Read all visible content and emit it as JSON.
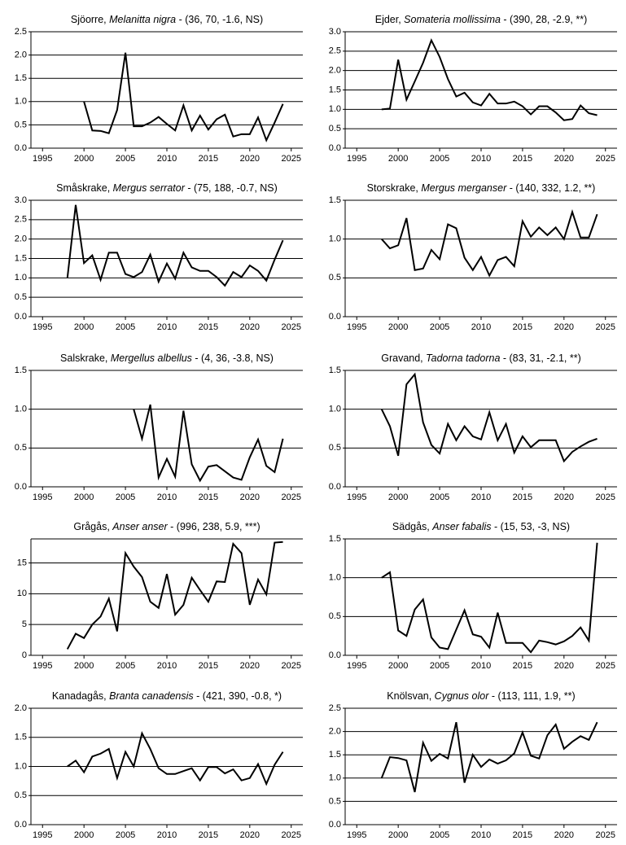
{
  "chart_data": [
    {
      "type": "line",
      "title": [
        "Sjöorre, ",
        "Melanitta nigra",
        " - (36, 70, -1.6, NS)"
      ],
      "color": "#000000",
      "x": [
        1998,
        1999,
        2000,
        2001,
        2002,
        2003,
        2004,
        2005,
        2006,
        2007,
        2008,
        2009,
        2010,
        2011,
        2012,
        2013,
        2014,
        2015,
        2016,
        2017,
        2018,
        2019,
        2020,
        2021,
        2022,
        2023,
        2024
      ],
      "values": [
        null,
        null,
        1.0,
        0.38,
        0.37,
        0.32,
        0.82,
        2.05,
        0.47,
        0.47,
        0.55,
        0.67,
        0.52,
        0.38,
        0.92,
        0.38,
        0.7,
        0.4,
        0.62,
        0.72,
        0.25,
        0.3,
        0.3,
        0.66,
        0.17,
        0.55,
        0.95
      ],
      "xlim": [
        1993.6,
        2026.4
      ],
      "xticks": [
        1995,
        2000,
        2005,
        2010,
        2015,
        2020,
        2025
      ],
      "ylim": [
        0,
        2.5
      ],
      "yticks": [
        {
          "value": 0,
          "label": "0.0"
        },
        0.5,
        {
          "value": 1,
          "label": "1.0"
        },
        1.5,
        {
          "value": 2,
          "label": "2.0"
        },
        2.5
      ],
      "grid": true
    },
    {
      "type": "line",
      "title": [
        "Ejder, ",
        "Somateria mollissima",
        " - (390, 28, -2.9, **)"
      ],
      "color": "#000000",
      "x": [
        1998,
        1999,
        2000,
        2001,
        2002,
        2003,
        2004,
        2005,
        2006,
        2007,
        2008,
        2009,
        2010,
        2011,
        2012,
        2013,
        2014,
        2015,
        2016,
        2017,
        2018,
        2019,
        2020,
        2021,
        2022,
        2023,
        2024
      ],
      "values": [
        1.0,
        1.02,
        2.28,
        1.25,
        1.72,
        2.2,
        2.78,
        2.35,
        1.78,
        1.33,
        1.43,
        1.18,
        1.1,
        1.4,
        1.15,
        1.15,
        1.2,
        1.08,
        0.87,
        1.08,
        1.08,
        0.92,
        0.72,
        0.75,
        1.1,
        0.9,
        0.85
      ],
      "xlim": [
        1993.6,
        2026.4
      ],
      "xticks": [
        1995,
        2000,
        2005,
        2010,
        2015,
        2020,
        2025
      ],
      "ylim": [
        0,
        3
      ],
      "yticks": [
        {
          "value": 0,
          "label": "0.0"
        },
        0.5,
        {
          "value": 1,
          "label": "1.0"
        },
        1.5,
        {
          "value": 2,
          "label": "2.0"
        },
        2.5,
        {
          "value": 3,
          "label": "3.0"
        }
      ],
      "grid": true
    },
    {
      "type": "line",
      "title": [
        "Småskrake, ",
        "Mergus serrator",
        " - (75, 188, -0.7, NS)"
      ],
      "color": "#000000",
      "x": [
        1998,
        1999,
        2000,
        2001,
        2002,
        2003,
        2004,
        2005,
        2006,
        2007,
        2008,
        2009,
        2010,
        2011,
        2012,
        2013,
        2014,
        2015,
        2016,
        2017,
        2018,
        2019,
        2020,
        2021,
        2022,
        2023,
        2024
      ],
      "values": [
        1.0,
        2.88,
        1.38,
        1.58,
        0.95,
        1.65,
        1.65,
        1.1,
        1.02,
        1.15,
        1.6,
        0.9,
        1.37,
        0.98,
        1.65,
        1.27,
        1.18,
        1.18,
        1.02,
        0.8,
        1.15,
        1.02,
        1.32,
        1.18,
        0.93,
        1.47,
        1.97
      ],
      "xlim": [
        1993.6,
        2026.4
      ],
      "xticks": [
        1995,
        2000,
        2005,
        2010,
        2015,
        2020,
        2025
      ],
      "ylim": [
        0,
        3
      ],
      "yticks": [
        {
          "value": 0,
          "label": "0.0"
        },
        0.5,
        {
          "value": 1,
          "label": "1.0"
        },
        1.5,
        {
          "value": 2,
          "label": "2.0"
        },
        2.5,
        {
          "value": 3,
          "label": "3.0"
        }
      ],
      "grid": true
    },
    {
      "type": "line",
      "title": [
        "Storskrake, ",
        "Mergus merganser",
        " - (140, 332, 1.2, **)"
      ],
      "color": "#000000",
      "x": [
        1998,
        1999,
        2000,
        2001,
        2002,
        2003,
        2004,
        2005,
        2006,
        2007,
        2008,
        2009,
        2010,
        2011,
        2012,
        2013,
        2014,
        2015,
        2016,
        2017,
        2018,
        2019,
        2020,
        2021,
        2022,
        2023,
        2024
      ],
      "values": [
        1.0,
        0.88,
        0.92,
        1.27,
        0.6,
        0.62,
        0.86,
        0.74,
        1.19,
        1.14,
        0.76,
        0.6,
        0.77,
        0.53,
        0.73,
        0.77,
        0.65,
        1.23,
        1.03,
        1.15,
        1.05,
        1.15,
        1.0,
        1.35,
        1.02,
        1.02,
        1.32
      ],
      "xlim": [
        1993.6,
        2026.4
      ],
      "xticks": [
        1995,
        2000,
        2005,
        2010,
        2015,
        2020,
        2025
      ],
      "ylim": [
        0,
        1.5
      ],
      "yticks": [
        {
          "value": 0,
          "label": "0.0"
        },
        0.5,
        {
          "value": 1,
          "label": "1.0"
        },
        1.5
      ],
      "grid": true
    },
    {
      "type": "line",
      "title": [
        "Salskrake, ",
        "Mergellus albellus",
        " - (4, 36, -3.8, NS)"
      ],
      "color": "#000000",
      "x": [
        1998,
        1999,
        2000,
        2001,
        2002,
        2003,
        2004,
        2005,
        2006,
        2007,
        2008,
        2009,
        2010,
        2011,
        2012,
        2013,
        2014,
        2015,
        2016,
        2017,
        2018,
        2019,
        2020,
        2021,
        2022,
        2023,
        2024
      ],
      "values": [
        null,
        null,
        null,
        null,
        null,
        null,
        null,
        null,
        1.0,
        0.62,
        1.06,
        0.12,
        0.36,
        0.13,
        0.98,
        0.29,
        0.08,
        0.26,
        0.28,
        0.2,
        0.12,
        0.09,
        0.38,
        0.61,
        0.27,
        0.19,
        0.62
      ],
      "xlim": [
        1993.6,
        2026.4
      ],
      "xticks": [
        1995,
        2000,
        2005,
        2010,
        2015,
        2020,
        2025
      ],
      "ylim": [
        0,
        1.5
      ],
      "yticks": [
        {
          "value": 0,
          "label": "0.0"
        },
        0.5,
        {
          "value": 1,
          "label": "1.0"
        },
        1.5
      ],
      "grid": true
    },
    {
      "type": "line",
      "title": [
        "Gravand, ",
        "Tadorna tadorna",
        " - (83, 31, -2.1, **)"
      ],
      "color": "#000000",
      "x": [
        1998,
        1999,
        2000,
        2001,
        2002,
        2003,
        2004,
        2005,
        2006,
        2007,
        2008,
        2009,
        2010,
        2011,
        2012,
        2013,
        2014,
        2015,
        2016,
        2017,
        2018,
        2019,
        2020,
        2021,
        2022,
        2023,
        2024
      ],
      "values": [
        1.0,
        0.78,
        0.4,
        1.32,
        1.45,
        0.83,
        0.54,
        0.43,
        0.81,
        0.6,
        0.78,
        0.65,
        0.61,
        0.96,
        0.6,
        0.81,
        0.44,
        0.65,
        0.51,
        0.6,
        0.6,
        0.6,
        0.33,
        0.45,
        0.52,
        0.58,
        0.62
      ],
      "xlim": [
        1993.6,
        2026.4
      ],
      "xticks": [
        1995,
        2000,
        2005,
        2010,
        2015,
        2020,
        2025
      ],
      "ylim": [
        0,
        1.5
      ],
      "yticks": [
        {
          "value": 0,
          "label": "0.0"
        },
        0.5,
        {
          "value": 1,
          "label": "1.0"
        },
        1.5
      ],
      "grid": true
    },
    {
      "type": "line",
      "title": [
        "Grågås, ",
        "Anser anser",
        " - (996, 238, 5.9, ***)"
      ],
      "color": "#000000",
      "x": [
        1998,
        1999,
        2000,
        2001,
        2002,
        2003,
        2004,
        2005,
        2006,
        2007,
        2008,
        2009,
        2010,
        2011,
        2012,
        2013,
        2014,
        2015,
        2016,
        2017,
        2018,
        2019,
        2020,
        2021,
        2022,
        2023,
        2024
      ],
      "values": [
        1.0,
        3.5,
        2.8,
        5.0,
        6.3,
        9.2,
        3.9,
        16.6,
        14.4,
        12.7,
        8.7,
        7.7,
        13.2,
        6.6,
        8.2,
        12.6,
        10.6,
        8.7,
        12.0,
        11.9,
        18.1,
        16.6,
        8.2,
        12.3,
        9.9,
        18.3,
        18.4
      ],
      "xlim": [
        1993.6,
        2026.4
      ],
      "xticks": [
        1995,
        2000,
        2005,
        2010,
        2015,
        2020,
        2025
      ],
      "ylim": [
        0,
        18.9
      ],
      "yticks": [
        0,
        5,
        10,
        15
      ],
      "grid": true
    },
    {
      "type": "line",
      "title": [
        "Sädgås, ",
        "Anser fabalis",
        " - (15, 53, -3, NS)"
      ],
      "color": "#000000",
      "x": [
        1998,
        1999,
        2000,
        2001,
        2002,
        2003,
        2004,
        2005,
        2006,
        2007,
        2008,
        2009,
        2010,
        2011,
        2012,
        2013,
        2014,
        2015,
        2016,
        2017,
        2018,
        2019,
        2020,
        2021,
        2022,
        2023,
        2024
      ],
      "values": [
        1.0,
        1.07,
        0.32,
        0.25,
        0.59,
        0.72,
        0.23,
        0.1,
        0.08,
        0.33,
        0.58,
        0.27,
        0.24,
        0.1,
        0.55,
        0.16,
        0.16,
        0.16,
        0.04,
        0.19,
        0.17,
        0.14,
        0.18,
        0.25,
        0.36,
        0.19,
        1.45
      ],
      "xlim": [
        1993.6,
        2026.4
      ],
      "xticks": [
        1995,
        2000,
        2005,
        2010,
        2015,
        2020,
        2025
      ],
      "ylim": [
        0,
        1.5
      ],
      "yticks": [
        {
          "value": 0,
          "label": "0.0"
        },
        0.5,
        {
          "value": 1,
          "label": "1.0"
        },
        1.5
      ],
      "grid": true
    },
    {
      "type": "line",
      "title": [
        "Kanadagås, ",
        "Branta canadensis",
        " - (421, 390, -0.8, *)"
      ],
      "color": "#000000",
      "x": [
        1998,
        1999,
        2000,
        2001,
        2002,
        2003,
        2004,
        2005,
        2006,
        2007,
        2008,
        2009,
        2010,
        2011,
        2012,
        2013,
        2014,
        2015,
        2016,
        2017,
        2018,
        2019,
        2020,
        2021,
        2022,
        2023,
        2024
      ],
      "values": [
        1.0,
        1.1,
        0.9,
        1.17,
        1.22,
        1.3,
        0.8,
        1.25,
        1.0,
        1.57,
        1.3,
        0.97,
        0.87,
        0.87,
        0.92,
        0.97,
        0.76,
        0.99,
        0.99,
        0.88,
        0.95,
        0.76,
        0.8,
        1.04,
        0.7,
        1.03,
        1.25
      ],
      "xlim": [
        1993.6,
        2026.4
      ],
      "xticks": [
        1995,
        2000,
        2005,
        2010,
        2015,
        2020,
        2025
      ],
      "ylim": [
        0,
        2
      ],
      "yticks": [
        {
          "value": 0,
          "label": "0.0"
        },
        0.5,
        {
          "value": 1,
          "label": "1.0"
        },
        1.5,
        {
          "value": 2,
          "label": "2.0"
        }
      ],
      "grid": true
    },
    {
      "type": "line",
      "title": [
        "Knölsvan, ",
        "Cygnus olor",
        " - (113, 111, 1.9, **)"
      ],
      "color": "#000000",
      "x": [
        1998,
        1999,
        2000,
        2001,
        2002,
        2003,
        2004,
        2005,
        2006,
        2007,
        2008,
        2009,
        2010,
        2011,
        2012,
        2013,
        2014,
        2015,
        2016,
        2017,
        2018,
        2019,
        2020,
        2021,
        2022,
        2023,
        2024
      ],
      "values": [
        1.0,
        1.45,
        1.43,
        1.38,
        0.7,
        1.76,
        1.37,
        1.52,
        1.42,
        2.2,
        0.9,
        1.5,
        1.24,
        1.4,
        1.31,
        1.38,
        1.53,
        1.98,
        1.48,
        1.42,
        1.92,
        2.15,
        1.63,
        1.78,
        1.9,
        1.82,
        2.2
      ],
      "xlim": [
        1993.6,
        2026.4
      ],
      "xticks": [
        1995,
        2000,
        2005,
        2010,
        2015,
        2020,
        2025
      ],
      "ylim": [
        0,
        2.5
      ],
      "yticks": [
        {
          "value": 0,
          "label": "0.0"
        },
        0.5,
        {
          "value": 1,
          "label": "1.0"
        },
        1.5,
        {
          "value": 2,
          "label": "2.0"
        },
        2.5
      ],
      "grid": true
    }
  ]
}
